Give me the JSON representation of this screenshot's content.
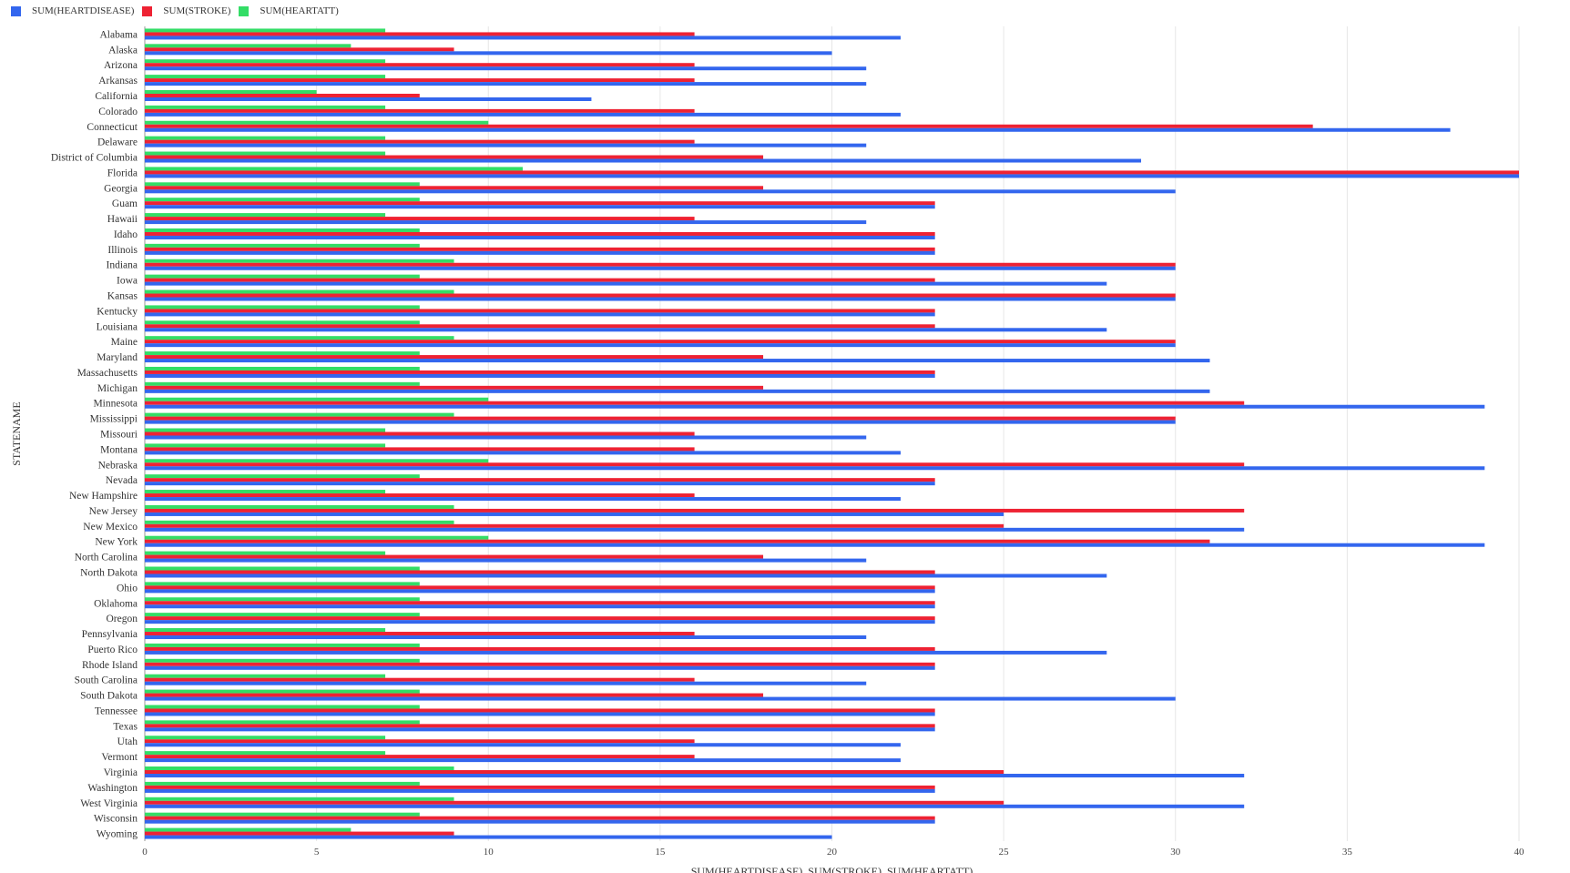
{
  "legend": {
    "items": [
      {
        "label": "SUM(HEARTDISEASE)",
        "color": "#3366ee"
      },
      {
        "label": "SUM(STROKE)",
        "color": "#ee2233"
      },
      {
        "label": "SUM(HEARTATT)",
        "color": "#33dd66"
      }
    ]
  },
  "chart_data": {
    "type": "bar",
    "orientation": "horizontal",
    "xlabel": "SUM(HEARTDISEASE), SUM(STROKE), SUM(HEARTATT)",
    "ylabel": "STATENAME",
    "xlim": [
      0,
      40
    ],
    "xticks": [
      0,
      5,
      10,
      15,
      20,
      25,
      30,
      35,
      40
    ],
    "grid": true,
    "legend_position": "top-left",
    "categories": [
      "Alabama",
      "Alaska",
      "Arizona",
      "Arkansas",
      "California",
      "Colorado",
      "Connecticut",
      "Delaware",
      "District of Columbia",
      "Florida",
      "Georgia",
      "Guam",
      "Hawaii",
      "Idaho",
      "Illinois",
      "Indiana",
      "Iowa",
      "Kansas",
      "Kentucky",
      "Louisiana",
      "Maine",
      "Maryland",
      "Massachusetts",
      "Michigan",
      "Minnesota",
      "Mississippi",
      "Missouri",
      "Montana",
      "Nebraska",
      "Nevada",
      "New Hampshire",
      "New Jersey",
      "New Mexico",
      "New York",
      "North Carolina",
      "North Dakota",
      "Ohio",
      "Oklahoma",
      "Oregon",
      "Pennsylvania",
      "Puerto Rico",
      "Rhode Island",
      "South Carolina",
      "South Dakota",
      "Tennessee",
      "Texas",
      "Utah",
      "Vermont",
      "Virginia",
      "Washington",
      "West Virginia",
      "Wisconsin",
      "Wyoming"
    ],
    "series": [
      {
        "name": "SUM(HEARTDISEASE)",
        "color": "#3366ee",
        "values": [
          22,
          20,
          21,
          21,
          13,
          22,
          38,
          21,
          29,
          40,
          30,
          23,
          21,
          23,
          23,
          30,
          28,
          30,
          23,
          28,
          30,
          31,
          23,
          31,
          39,
          30,
          21,
          22,
          39,
          23,
          22,
          25,
          32,
          39,
          21,
          28,
          23,
          23,
          23,
          21,
          28,
          23,
          21,
          30,
          23,
          23,
          22,
          22,
          32,
          23,
          32,
          23,
          20
        ]
      },
      {
        "name": "SUM(STROKE)",
        "color": "#ee2233",
        "values": [
          16,
          9,
          16,
          16,
          8,
          16,
          34,
          16,
          18,
          40,
          18,
          23,
          16,
          23,
          23,
          30,
          23,
          30,
          23,
          23,
          30,
          18,
          23,
          18,
          32,
          30,
          16,
          16,
          32,
          23,
          16,
          32,
          25,
          31,
          18,
          23,
          23,
          23,
          23,
          16,
          23,
          23,
          16,
          18,
          23,
          23,
          16,
          16,
          25,
          23,
          25,
          23,
          9
        ]
      },
      {
        "name": "SUM(HEARTATT)",
        "color": "#33dd66",
        "values": [
          7,
          6,
          7,
          7,
          5,
          7,
          10,
          7,
          7,
          11,
          8,
          8,
          7,
          8,
          8,
          9,
          8,
          9,
          8,
          8,
          9,
          8,
          8,
          8,
          10,
          9,
          7,
          7,
          10,
          8,
          7,
          9,
          9,
          10,
          7,
          8,
          8,
          8,
          8,
          7,
          8,
          8,
          7,
          8,
          8,
          8,
          7,
          7,
          9,
          8,
          9,
          8,
          6
        ]
      }
    ]
  }
}
